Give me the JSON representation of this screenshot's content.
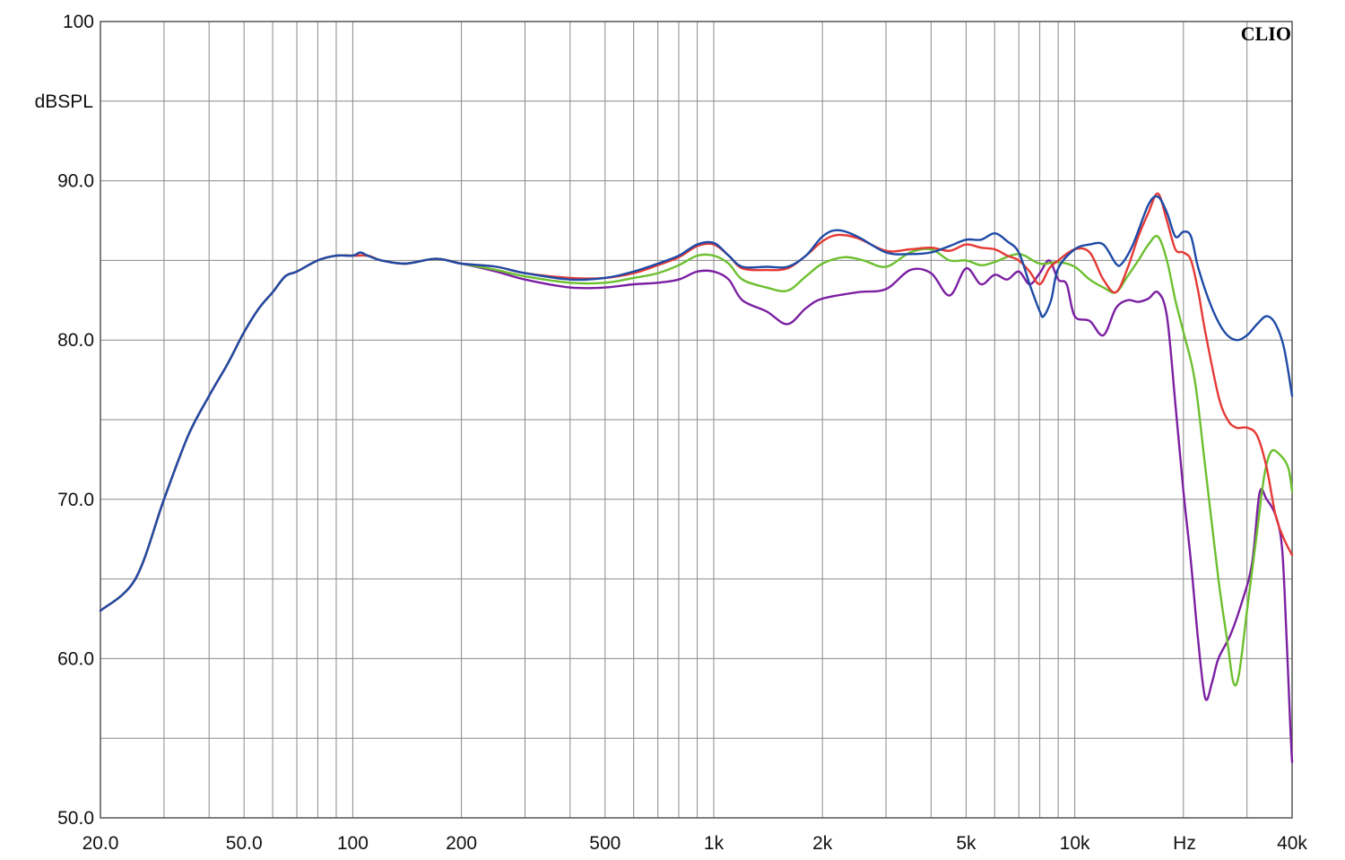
{
  "chart_data": {
    "type": "line",
    "brand": "CLIO",
    "ylabel": "dBSPL",
    "xlabel": "Hz",
    "x_scale": "log",
    "xlim": [
      20,
      40000
    ],
    "ylim": [
      50,
      100
    ],
    "grid": true,
    "y_ticks": [
      {
        "value": 100,
        "label": "100"
      },
      {
        "value": 90,
        "label": "90.0"
      },
      {
        "value": 80,
        "label": "80.0"
      },
      {
        "value": 70,
        "label": "70.0"
      },
      {
        "value": 60,
        "label": "60.0"
      },
      {
        "value": 50,
        "label": "50.0"
      }
    ],
    "x_ticks": [
      {
        "value": 20,
        "label": "20.0"
      },
      {
        "value": 50,
        "label": "50.0"
      },
      {
        "value": 100,
        "label": "100"
      },
      {
        "value": 200,
        "label": "200"
      },
      {
        "value": 500,
        "label": "500"
      },
      {
        "value": 1000,
        "label": "1k"
      },
      {
        "value": 2000,
        "label": "2k"
      },
      {
        "value": 5000,
        "label": "5k"
      },
      {
        "value": 10000,
        "label": "10k"
      },
      {
        "value": 40000,
        "label": "40k"
      }
    ],
    "series": [
      {
        "color": "#7b1fa2",
        "points": [
          [
            20,
            63
          ],
          [
            25,
            65
          ],
          [
            30,
            70
          ],
          [
            35,
            74
          ],
          [
            40,
            76.5
          ],
          [
            45,
            78.5
          ],
          [
            50,
            80.5
          ],
          [
            55,
            82
          ],
          [
            60,
            83
          ],
          [
            65,
            84
          ],
          [
            70,
            84.3
          ],
          [
            80,
            85
          ],
          [
            90,
            85.3
          ],
          [
            100,
            85.3
          ],
          [
            110,
            85.3
          ],
          [
            120,
            85
          ],
          [
            140,
            84.8
          ],
          [
            170,
            85.1
          ],
          [
            200,
            84.8
          ],
          [
            250,
            84.3
          ],
          [
            300,
            83.8
          ],
          [
            400,
            83.3
          ],
          [
            500,
            83.3
          ],
          [
            600,
            83.5
          ],
          [
            700,
            83.6
          ],
          [
            800,
            83.8
          ],
          [
            900,
            84.3
          ],
          [
            1000,
            84.3
          ],
          [
            1100,
            83.8
          ],
          [
            1200,
            82.5
          ],
          [
            1400,
            81.8
          ],
          [
            1600,
            81
          ],
          [
            1800,
            82
          ],
          [
            2000,
            82.6
          ],
          [
            2500,
            83
          ],
          [
            3000,
            83.2
          ],
          [
            3500,
            84.4
          ],
          [
            4000,
            84.2
          ],
          [
            4500,
            82.8
          ],
          [
            5000,
            84.5
          ],
          [
            5500,
            83.5
          ],
          [
            6000,
            84.1
          ],
          [
            6500,
            83.8
          ],
          [
            7000,
            84.3
          ],
          [
            7500,
            83.5
          ],
          [
            8000,
            84.2
          ],
          [
            8500,
            85
          ],
          [
            9000,
            83.8
          ],
          [
            9500,
            83.5
          ],
          [
            10000,
            81.5
          ],
          [
            11000,
            81.2
          ],
          [
            12000,
            80.3
          ],
          [
            13000,
            82
          ],
          [
            14000,
            82.5
          ],
          [
            15000,
            82.4
          ],
          [
            16000,
            82.6
          ],
          [
            17000,
            83
          ],
          [
            18000,
            81.5
          ],
          [
            19000,
            76
          ],
          [
            20000,
            70.5
          ],
          [
            21000,
            66
          ],
          [
            22000,
            61
          ],
          [
            23000,
            57.5
          ],
          [
            24000,
            58.5
          ],
          [
            25000,
            60
          ],
          [
            27000,
            61.5
          ],
          [
            29000,
            63.5
          ],
          [
            31000,
            66
          ],
          [
            32500,
            70.4
          ],
          [
            34000,
            70
          ],
          [
            36000,
            69
          ],
          [
            37500,
            67
          ],
          [
            38500,
            62
          ],
          [
            39500,
            56
          ],
          [
            40000,
            53.5
          ]
        ]
      },
      {
        "color": "#6cbf2f",
        "points": [
          [
            20,
            63
          ],
          [
            25,
            65
          ],
          [
            30,
            70
          ],
          [
            35,
            74
          ],
          [
            40,
            76.5
          ],
          [
            45,
            78.5
          ],
          [
            50,
            80.5
          ],
          [
            55,
            82
          ],
          [
            60,
            83
          ],
          [
            65,
            84
          ],
          [
            70,
            84.3
          ],
          [
            80,
            85
          ],
          [
            90,
            85.3
          ],
          [
            100,
            85.3
          ],
          [
            110,
            85.3
          ],
          [
            120,
            85
          ],
          [
            140,
            84.8
          ],
          [
            170,
            85.1
          ],
          [
            200,
            84.8
          ],
          [
            250,
            84.4
          ],
          [
            300,
            84
          ],
          [
            400,
            83.6
          ],
          [
            500,
            83.6
          ],
          [
            600,
            83.9
          ],
          [
            700,
            84.2
          ],
          [
            800,
            84.7
          ],
          [
            900,
            85.3
          ],
          [
            1000,
            85.3
          ],
          [
            1100,
            84.8
          ],
          [
            1200,
            83.8
          ],
          [
            1400,
            83.3
          ],
          [
            1600,
            83.1
          ],
          [
            1800,
            84
          ],
          [
            2000,
            84.8
          ],
          [
            2300,
            85.2
          ],
          [
            2600,
            85
          ],
          [
            3000,
            84.6
          ],
          [
            3500,
            85.5
          ],
          [
            4000,
            85.7
          ],
          [
            4500,
            85
          ],
          [
            5000,
            85
          ],
          [
            5500,
            84.7
          ],
          [
            6000,
            84.9
          ],
          [
            7000,
            85.4
          ],
          [
            8000,
            84.8
          ],
          [
            9000,
            84.9
          ],
          [
            10000,
            84.6
          ],
          [
            11000,
            83.8
          ],
          [
            12000,
            83.3
          ],
          [
            13000,
            83
          ],
          [
            14000,
            84
          ],
          [
            15000,
            85
          ],
          [
            16000,
            86
          ],
          [
            17000,
            86.5
          ],
          [
            18000,
            85
          ],
          [
            19000,
            82.5
          ],
          [
            20000,
            80.5
          ],
          [
            21500,
            77.5
          ],
          [
            23000,
            72
          ],
          [
            25000,
            65
          ],
          [
            26500,
            61
          ],
          [
            27500,
            58.5
          ],
          [
            28500,
            59
          ],
          [
            30000,
            63
          ],
          [
            32000,
            68
          ],
          [
            33500,
            71.5
          ],
          [
            35000,
            73
          ],
          [
            37000,
            72.8
          ],
          [
            39000,
            72
          ],
          [
            40000,
            70.5
          ]
        ]
      },
      {
        "color": "#e53935",
        "points": [
          [
            20,
            63
          ],
          [
            25,
            65
          ],
          [
            30,
            70
          ],
          [
            35,
            74
          ],
          [
            40,
            76.5
          ],
          [
            45,
            78.5
          ],
          [
            50,
            80.5
          ],
          [
            55,
            82
          ],
          [
            60,
            83
          ],
          [
            65,
            84
          ],
          [
            70,
            84.3
          ],
          [
            80,
            85
          ],
          [
            90,
            85.3
          ],
          [
            100,
            85.3
          ],
          [
            110,
            85.3
          ],
          [
            120,
            85
          ],
          [
            140,
            84.8
          ],
          [
            170,
            85.1
          ],
          [
            200,
            84.8
          ],
          [
            250,
            84.6
          ],
          [
            300,
            84.2
          ],
          [
            400,
            83.9
          ],
          [
            500,
            83.9
          ],
          [
            600,
            84.2
          ],
          [
            700,
            84.7
          ],
          [
            800,
            85.2
          ],
          [
            900,
            85.9
          ],
          [
            1000,
            86
          ],
          [
            1100,
            85.3
          ],
          [
            1200,
            84.5
          ],
          [
            1400,
            84.4
          ],
          [
            1600,
            84.5
          ],
          [
            1800,
            85.3
          ],
          [
            2000,
            86.2
          ],
          [
            2200,
            86.6
          ],
          [
            2500,
            86.4
          ],
          [
            3000,
            85.6
          ],
          [
            3500,
            85.7
          ],
          [
            4000,
            85.8
          ],
          [
            4500,
            85.6
          ],
          [
            5000,
            86
          ],
          [
            5500,
            85.8
          ],
          [
            6000,
            85.7
          ],
          [
            6500,
            85.3
          ],
          [
            7000,
            85
          ],
          [
            7500,
            84.3
          ],
          [
            8000,
            83.5
          ],
          [
            8500,
            84.5
          ],
          [
            9000,
            85
          ],
          [
            10000,
            85.7
          ],
          [
            11000,
            85.5
          ],
          [
            12000,
            83.8
          ],
          [
            13000,
            83
          ],
          [
            14000,
            84.5
          ],
          [
            15000,
            86.5
          ],
          [
            16000,
            88
          ],
          [
            17000,
            89.2
          ],
          [
            18000,
            87.5
          ],
          [
            19000,
            85.7
          ],
          [
            20000,
            85.5
          ],
          [
            21000,
            85
          ],
          [
            22000,
            83
          ],
          [
            23000,
            80.5
          ],
          [
            25000,
            76.5
          ],
          [
            26500,
            75
          ],
          [
            28000,
            74.5
          ],
          [
            30000,
            74.5
          ],
          [
            32000,
            74
          ],
          [
            34000,
            72
          ],
          [
            36000,
            69
          ],
          [
            38000,
            67.5
          ],
          [
            40000,
            66.5
          ]
        ]
      },
      {
        "color": "#1e4aa6",
        "points": [
          [
            20,
            63
          ],
          [
            25,
            65
          ],
          [
            30,
            70
          ],
          [
            35,
            74
          ],
          [
            40,
            76.5
          ],
          [
            45,
            78.5
          ],
          [
            50,
            80.5
          ],
          [
            55,
            82
          ],
          [
            60,
            83
          ],
          [
            65,
            84
          ],
          [
            70,
            84.3
          ],
          [
            80,
            85
          ],
          [
            90,
            85.3
          ],
          [
            100,
            85.3
          ],
          [
            105,
            85.5
          ],
          [
            110,
            85.3
          ],
          [
            120,
            85
          ],
          [
            140,
            84.8
          ],
          [
            170,
            85.1
          ],
          [
            200,
            84.8
          ],
          [
            250,
            84.6
          ],
          [
            300,
            84.2
          ],
          [
            400,
            83.8
          ],
          [
            500,
            83.9
          ],
          [
            600,
            84.3
          ],
          [
            700,
            84.8
          ],
          [
            800,
            85.3
          ],
          [
            900,
            86
          ],
          [
            1000,
            86.1
          ],
          [
            1100,
            85.3
          ],
          [
            1200,
            84.6
          ],
          [
            1400,
            84.6
          ],
          [
            1600,
            84.6
          ],
          [
            1800,
            85.3
          ],
          [
            2000,
            86.5
          ],
          [
            2200,
            86.9
          ],
          [
            2500,
            86.5
          ],
          [
            3000,
            85.5
          ],
          [
            3500,
            85.4
          ],
          [
            4000,
            85.5
          ],
          [
            4500,
            85.9
          ],
          [
            5000,
            86.3
          ],
          [
            5500,
            86.3
          ],
          [
            6000,
            86.7
          ],
          [
            6500,
            86.2
          ],
          [
            7000,
            85.5
          ],
          [
            7500,
            83.5
          ],
          [
            8000,
            81.8
          ],
          [
            8200,
            81.5
          ],
          [
            8600,
            82.5
          ],
          [
            9000,
            84.5
          ],
          [
            10000,
            85.7
          ],
          [
            11000,
            86
          ],
          [
            12000,
            86
          ],
          [
            13000,
            84.8
          ],
          [
            13500,
            84.8
          ],
          [
            14500,
            86
          ],
          [
            16000,
            88.5
          ],
          [
            17000,
            89
          ],
          [
            18000,
            88
          ],
          [
            19000,
            86.5
          ],
          [
            20000,
            86.8
          ],
          [
            21000,
            86.5
          ],
          [
            22000,
            84.5
          ],
          [
            24000,
            82
          ],
          [
            26000,
            80.5
          ],
          [
            28000,
            80
          ],
          [
            30000,
            80.3
          ],
          [
            32000,
            81
          ],
          [
            34000,
            81.5
          ],
          [
            36000,
            81
          ],
          [
            38000,
            79.5
          ],
          [
            40000,
            76.5
          ]
        ]
      }
    ]
  }
}
